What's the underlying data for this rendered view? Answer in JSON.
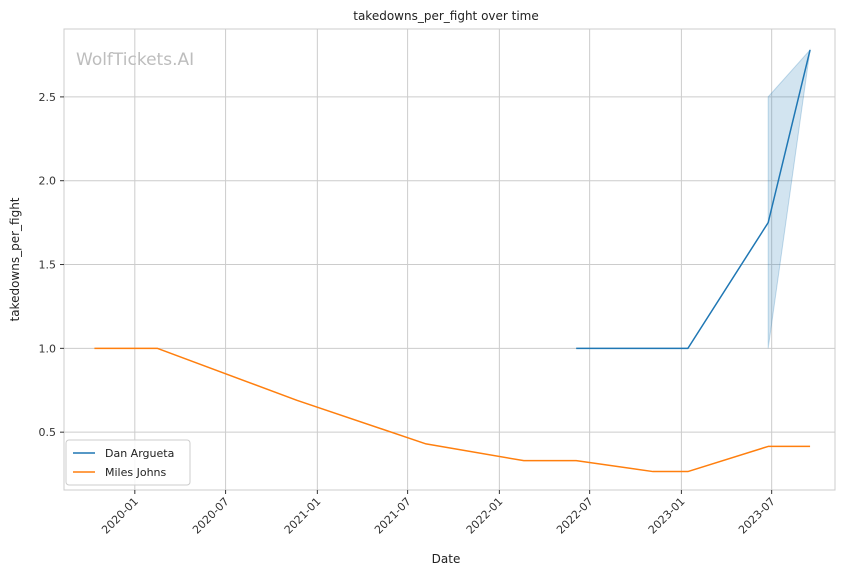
{
  "chart_data": {
    "type": "line",
    "title": "takedowns_per_fight over time",
    "xlabel": "Date",
    "ylabel": "takedowns_per_fight",
    "watermark": "WolfTickets.AI",
    "x_range": [
      "2019-08-12",
      "2023-11-05"
    ],
    "y_range": [
      0.155,
      2.905
    ],
    "y_ticks": [
      0.5,
      1.0,
      1.5,
      2.0,
      2.5
    ],
    "y_tick_labels": [
      "0.5",
      "1.0",
      "1.5",
      "2.0",
      "2.5"
    ],
    "x_ticks": [
      "2020-01-01",
      "2020-07-01",
      "2021-01-01",
      "2021-07-01",
      "2022-01-01",
      "2022-07-01",
      "2023-01-01",
      "2023-07-01"
    ],
    "x_tick_labels": [
      "2020-01",
      "2020-07",
      "2021-01",
      "2021-07",
      "2022-01",
      "2022-07",
      "2023-01",
      "2023-07"
    ],
    "grid": true,
    "legend_position": "lower-left",
    "series": [
      {
        "name": "Dan Argueta",
        "color": "#1f77b4",
        "points": [
          {
            "x": "2022-06-04",
            "y": 1.0
          },
          {
            "x": "2023-01-14",
            "y": 1.0
          },
          {
            "x": "2023-06-24",
            "y": 1.75
          },
          {
            "x": "2023-09-16",
            "y": 2.78
          }
        ],
        "band": [
          {
            "x": "2023-06-24",
            "low": 1.0,
            "high": 2.5
          },
          {
            "x": "2023-09-16",
            "low": 2.78,
            "high": 2.78
          }
        ]
      },
      {
        "name": "Miles Johns",
        "color": "#ff7f0e",
        "points": [
          {
            "x": "2019-10-12",
            "y": 1.0
          },
          {
            "x": "2020-02-15",
            "y": 1.0
          },
          {
            "x": "2020-11-21",
            "y": 0.69
          },
          {
            "x": "2021-08-07",
            "y": 0.43
          },
          {
            "x": "2022-02-19",
            "y": 0.33
          },
          {
            "x": "2022-06-04",
            "y": 0.33
          },
          {
            "x": "2022-11-05",
            "y": 0.265
          },
          {
            "x": "2023-01-14",
            "y": 0.265
          },
          {
            "x": "2023-06-24",
            "y": 0.415
          },
          {
            "x": "2023-09-16",
            "y": 0.415
          }
        ]
      }
    ]
  }
}
